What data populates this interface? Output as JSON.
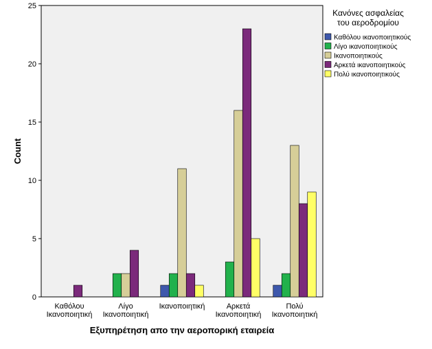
{
  "chart_data": {
    "type": "bar",
    "xlabel": "Εξυπηρέτηση απο την αεροπορική εταιρεία",
    "ylabel": "Count",
    "ylim": [
      0,
      25
    ],
    "yticks": [
      0,
      5,
      10,
      15,
      20,
      25
    ],
    "grid": false,
    "legend": {
      "title_lines": [
        "Κανόνες ασφαλείας",
        "του αεροδρομίου"
      ],
      "placement": "right"
    },
    "categories": [
      [
        "Καθόλου",
        "Ικανοποιητική"
      ],
      [
        "Λίγο",
        "Ικανοποιητική"
      ],
      [
        "Ικανοποιητική"
      ],
      [
        "Αρκετά",
        "Ικανοποιητική"
      ],
      [
        "Πολύ",
        "Ικανοποιητική"
      ]
    ],
    "series": [
      {
        "name": "Καθόλου ικανοποιητικούς",
        "color": "#3E58AC",
        "values": [
          0,
          0,
          1,
          0,
          1
        ]
      },
      {
        "name": "Λίγο ικανοποιητικούς",
        "color": "#22B14C",
        "values": [
          0,
          2,
          2,
          3,
          2
        ]
      },
      {
        "name": "Ικανοποιητικούς",
        "color": "#D6CE98",
        "values": [
          0,
          2,
          11,
          16,
          13
        ]
      },
      {
        "name": "Αρκετά ικανοποιητικούς",
        "color": "#7B2A7B",
        "values": [
          1,
          4,
          2,
          23,
          8
        ]
      },
      {
        "name": "Πολύ ικανοποιητικούς",
        "color": "#FFFF66",
        "values": [
          0,
          0,
          1,
          5,
          9
        ]
      }
    ]
  }
}
